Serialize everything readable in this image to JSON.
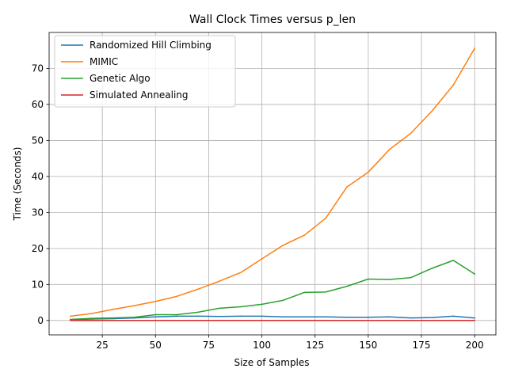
{
  "chart_data": {
    "type": "line",
    "title": "Wall Clock Times versus p_len",
    "xlabel": "Size of Samples",
    "ylabel": "Time (Seconds)",
    "xlim": [
      0,
      210
    ],
    "ylim": [
      -4,
      80
    ],
    "xticks": [
      25,
      50,
      75,
      100,
      125,
      150,
      175,
      200
    ],
    "yticks": [
      0,
      10,
      20,
      30,
      40,
      50,
      60,
      70
    ],
    "grid": true,
    "legend_position": "top-left",
    "x": [
      10,
      20,
      30,
      40,
      50,
      60,
      70,
      80,
      90,
      100,
      110,
      120,
      130,
      140,
      150,
      160,
      170,
      180,
      190,
      200
    ],
    "series": [
      {
        "name": "Randomized Hill Climbing",
        "color": "#1f77b4",
        "values": [
          0.2,
          0.4,
          0.5,
          0.7,
          1.0,
          1.2,
          1.2,
          1.1,
          1.2,
          1.2,
          1.0,
          1.0,
          1.0,
          0.9,
          0.9,
          1.0,
          0.7,
          0.8,
          1.2,
          0.7
        ]
      },
      {
        "name": "MIMIC",
        "color": "#ff7f0e",
        "values": [
          1.2,
          1.9,
          3.1,
          4.1,
          5.3,
          6.7,
          8.7,
          10.9,
          13.3,
          17.1,
          20.9,
          23.7,
          28.4,
          37.1,
          41.2,
          47.5,
          52.0,
          58.2,
          65.4,
          75.6
        ]
      },
      {
        "name": "Genetic Algo",
        "color": "#2ca02c",
        "values": [
          0.3,
          0.6,
          0.7,
          0.9,
          1.6,
          1.6,
          2.3,
          3.4,
          3.8,
          4.5,
          5.6,
          7.8,
          7.9,
          9.5,
          11.5,
          11.4,
          11.9,
          14.5,
          16.7,
          12.9
        ]
      },
      {
        "name": "Simulated Annealing",
        "color": "#d62728",
        "values": [
          0.0,
          0.0,
          0.0,
          0.0,
          0.0,
          0.0,
          0.0,
          0.0,
          0.0,
          0.0,
          0.0,
          0.0,
          0.0,
          0.0,
          0.0,
          0.0,
          0.0,
          0.0,
          0.0,
          0.0
        ]
      }
    ]
  }
}
